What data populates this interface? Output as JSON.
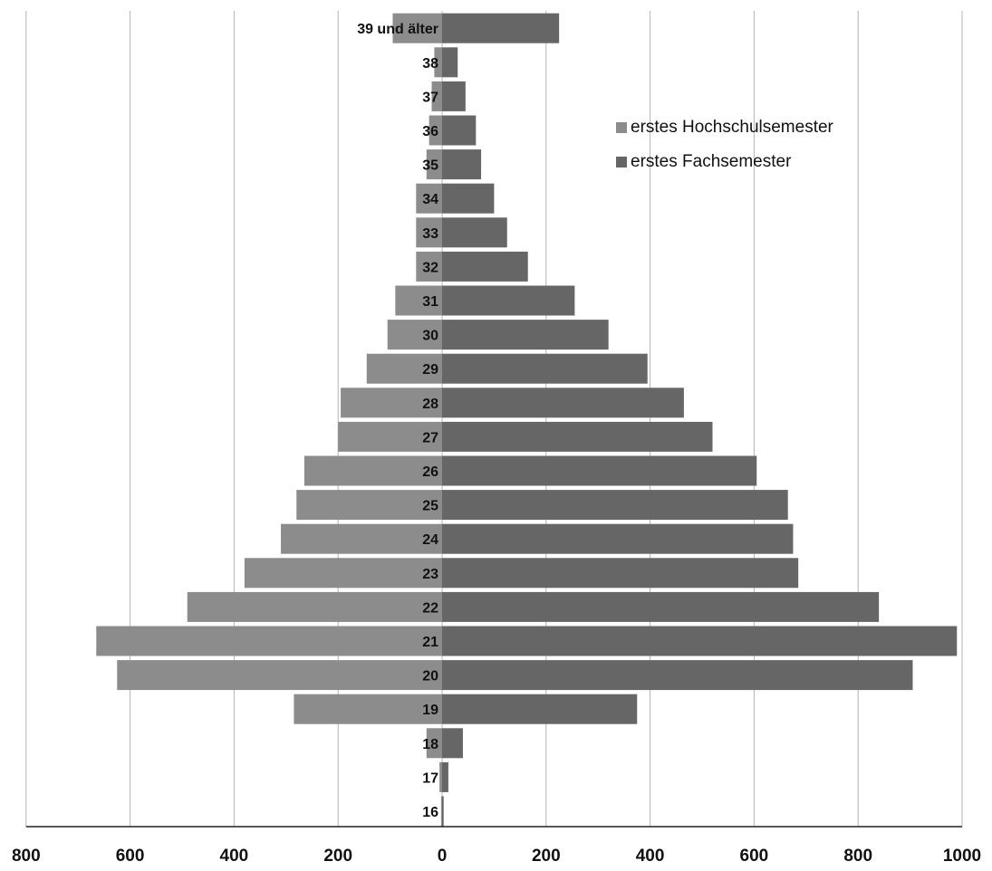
{
  "chart_data": {
    "type": "bar",
    "orientation": "horizontal",
    "subtype": "population-pyramid",
    "title": "",
    "xlabel": "",
    "ylabel": "",
    "categories": [
      "16",
      "17",
      "18",
      "19",
      "20",
      "21",
      "22",
      "23",
      "24",
      "25",
      "26",
      "27",
      "28",
      "29",
      "30",
      "31",
      "32",
      "33",
      "34",
      "35",
      "36",
      "37",
      "38",
      "39 und älter"
    ],
    "series": [
      {
        "name": "erstes Hochschulsemester",
        "side": "left",
        "color": "#8c8c8c",
        "values": [
          2,
          5,
          30,
          285,
          625,
          665,
          490,
          380,
          310,
          280,
          265,
          200,
          195,
          145,
          105,
          90,
          50,
          50,
          50,
          30,
          25,
          20,
          15,
          95
        ]
      },
      {
        "name": "erstes Fachsemester",
        "side": "right",
        "color": "#666666",
        "values": [
          3,
          12,
          40,
          375,
          905,
          990,
          840,
          685,
          675,
          665,
          605,
          520,
          465,
          395,
          320,
          255,
          165,
          125,
          100,
          75,
          65,
          45,
          30,
          225
        ]
      }
    ],
    "x_tick_labels": [
      "800",
      "600",
      "400",
      "200",
      "0",
      "200",
      "400",
      "600",
      "800",
      "1000"
    ],
    "xlim": [
      -800,
      1000
    ],
    "grid": true,
    "legend_position": "top-right"
  }
}
